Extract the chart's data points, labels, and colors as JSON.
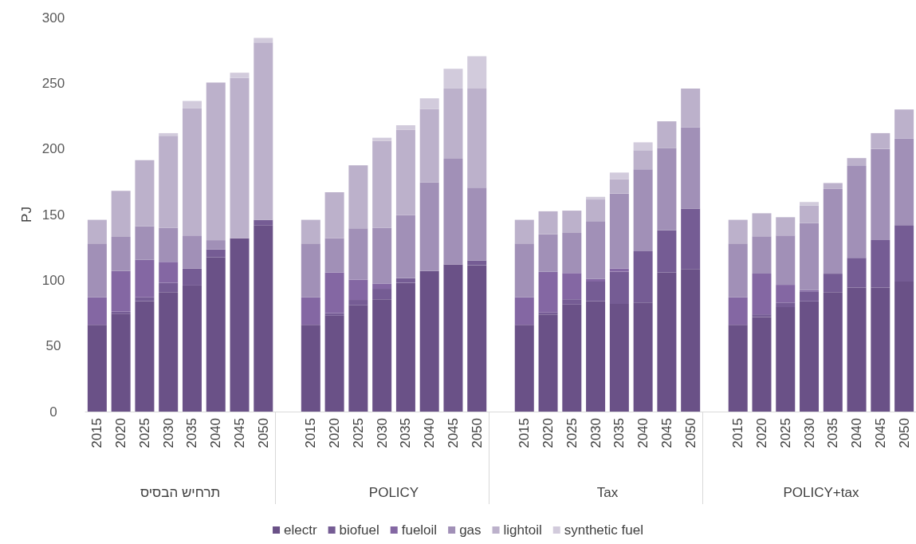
{
  "chart_data": {
    "type": "bar",
    "stacked": true,
    "ylabel": "PJ",
    "ylim": [
      0,
      300
    ],
    "yticks": [
      0,
      50,
      100,
      150,
      200,
      250,
      300
    ],
    "grid": false,
    "legend": "bottom",
    "categories": [
      "2015",
      "2020",
      "2025",
      "2030",
      "2035",
      "2040",
      "2045",
      "2050",
      null,
      "2015",
      "2020",
      "2025",
      "2030",
      "2035",
      "2040",
      "2045",
      "2050",
      null,
      "2015",
      "2020",
      "2025",
      "2030",
      "2035",
      "2040",
      "2045",
      "2050",
      null,
      "2015",
      "2020",
      "2025",
      "2030",
      "2035",
      "2040",
      "2045",
      "2050"
    ],
    "annotations": [
      "תרחיש הבסיס",
      "POLICY",
      "Tax",
      "POLICY+tax"
    ],
    "series": [
      {
        "name": "electr",
        "color": "#6a5187",
        "values": [
          66,
          74.5,
          84,
          91,
          96,
          117.5,
          132,
          142,
          null,
          66,
          73,
          81,
          85.5,
          98,
          107,
          112,
          111.5,
          null,
          66,
          74,
          81.5,
          84,
          82,
          83,
          106,
          108.5,
          null,
          66,
          72,
          79.5,
          84,
          91,
          94.5,
          94.5,
          99
        ]
      },
      {
        "name": "biofuel",
        "color": "#755c94",
        "values": [
          0,
          1.5,
          3,
          7,
          13,
          6,
          0,
          4,
          null,
          0,
          2,
          4,
          8,
          3.5,
          0,
          0,
          3.5,
          null,
          0,
          1.5,
          4,
          15,
          24.5,
          39,
          32,
          46,
          null,
          0,
          2,
          3.5,
          7.5,
          14,
          22.5,
          36,
          43
        ]
      },
      {
        "name": "fueloil",
        "color": "#8467a3",
        "values": [
          21,
          31,
          28.5,
          16,
          0,
          0,
          0,
          0,
          null,
          21,
          31,
          15.5,
          4,
          0,
          0,
          0,
          0,
          null,
          21,
          31,
          20,
          2,
          2.5,
          0,
          0,
          0,
          null,
          21,
          31,
          13.5,
          1,
          0,
          0,
          0,
          0
        ]
      },
      {
        "name": "gas",
        "color": "#a190b7",
        "values": [
          41,
          26,
          25.5,
          26,
          25,
          7,
          0,
          0,
          null,
          41,
          26,
          39,
          42.5,
          48,
          67.5,
          80.5,
          55.5,
          null,
          41,
          28.5,
          30.5,
          44,
          57,
          62.5,
          62.5,
          62,
          null,
          41,
          28.5,
          37.5,
          51,
          64.5,
          70,
          69.5,
          66
        ]
      },
      {
        "name": "lightoil",
        "color": "#bcb1cb",
        "values": [
          18,
          35,
          50.5,
          70,
          97,
          120,
          122,
          135,
          null,
          18,
          35,
          48,
          66,
          65,
          56,
          53.5,
          75.5,
          null,
          18,
          17.5,
          17,
          16.5,
          11,
          14.5,
          20.5,
          29.5,
          null,
          18,
          17.5,
          14,
          13.5,
          4.5,
          6,
          12,
          22
        ]
      },
      {
        "name": "synthetic fuel",
        "color": "#d2cbdc",
        "values": [
          0,
          0,
          0,
          2,
          5.5,
          0,
          4,
          3.5,
          null,
          0,
          0,
          0,
          2.5,
          3.5,
          8,
          15,
          24.5,
          null,
          0,
          0,
          0,
          2,
          5,
          6,
          0,
          0,
          null,
          0,
          0,
          0,
          2.5,
          0,
          0,
          0,
          0
        ]
      }
    ]
  }
}
